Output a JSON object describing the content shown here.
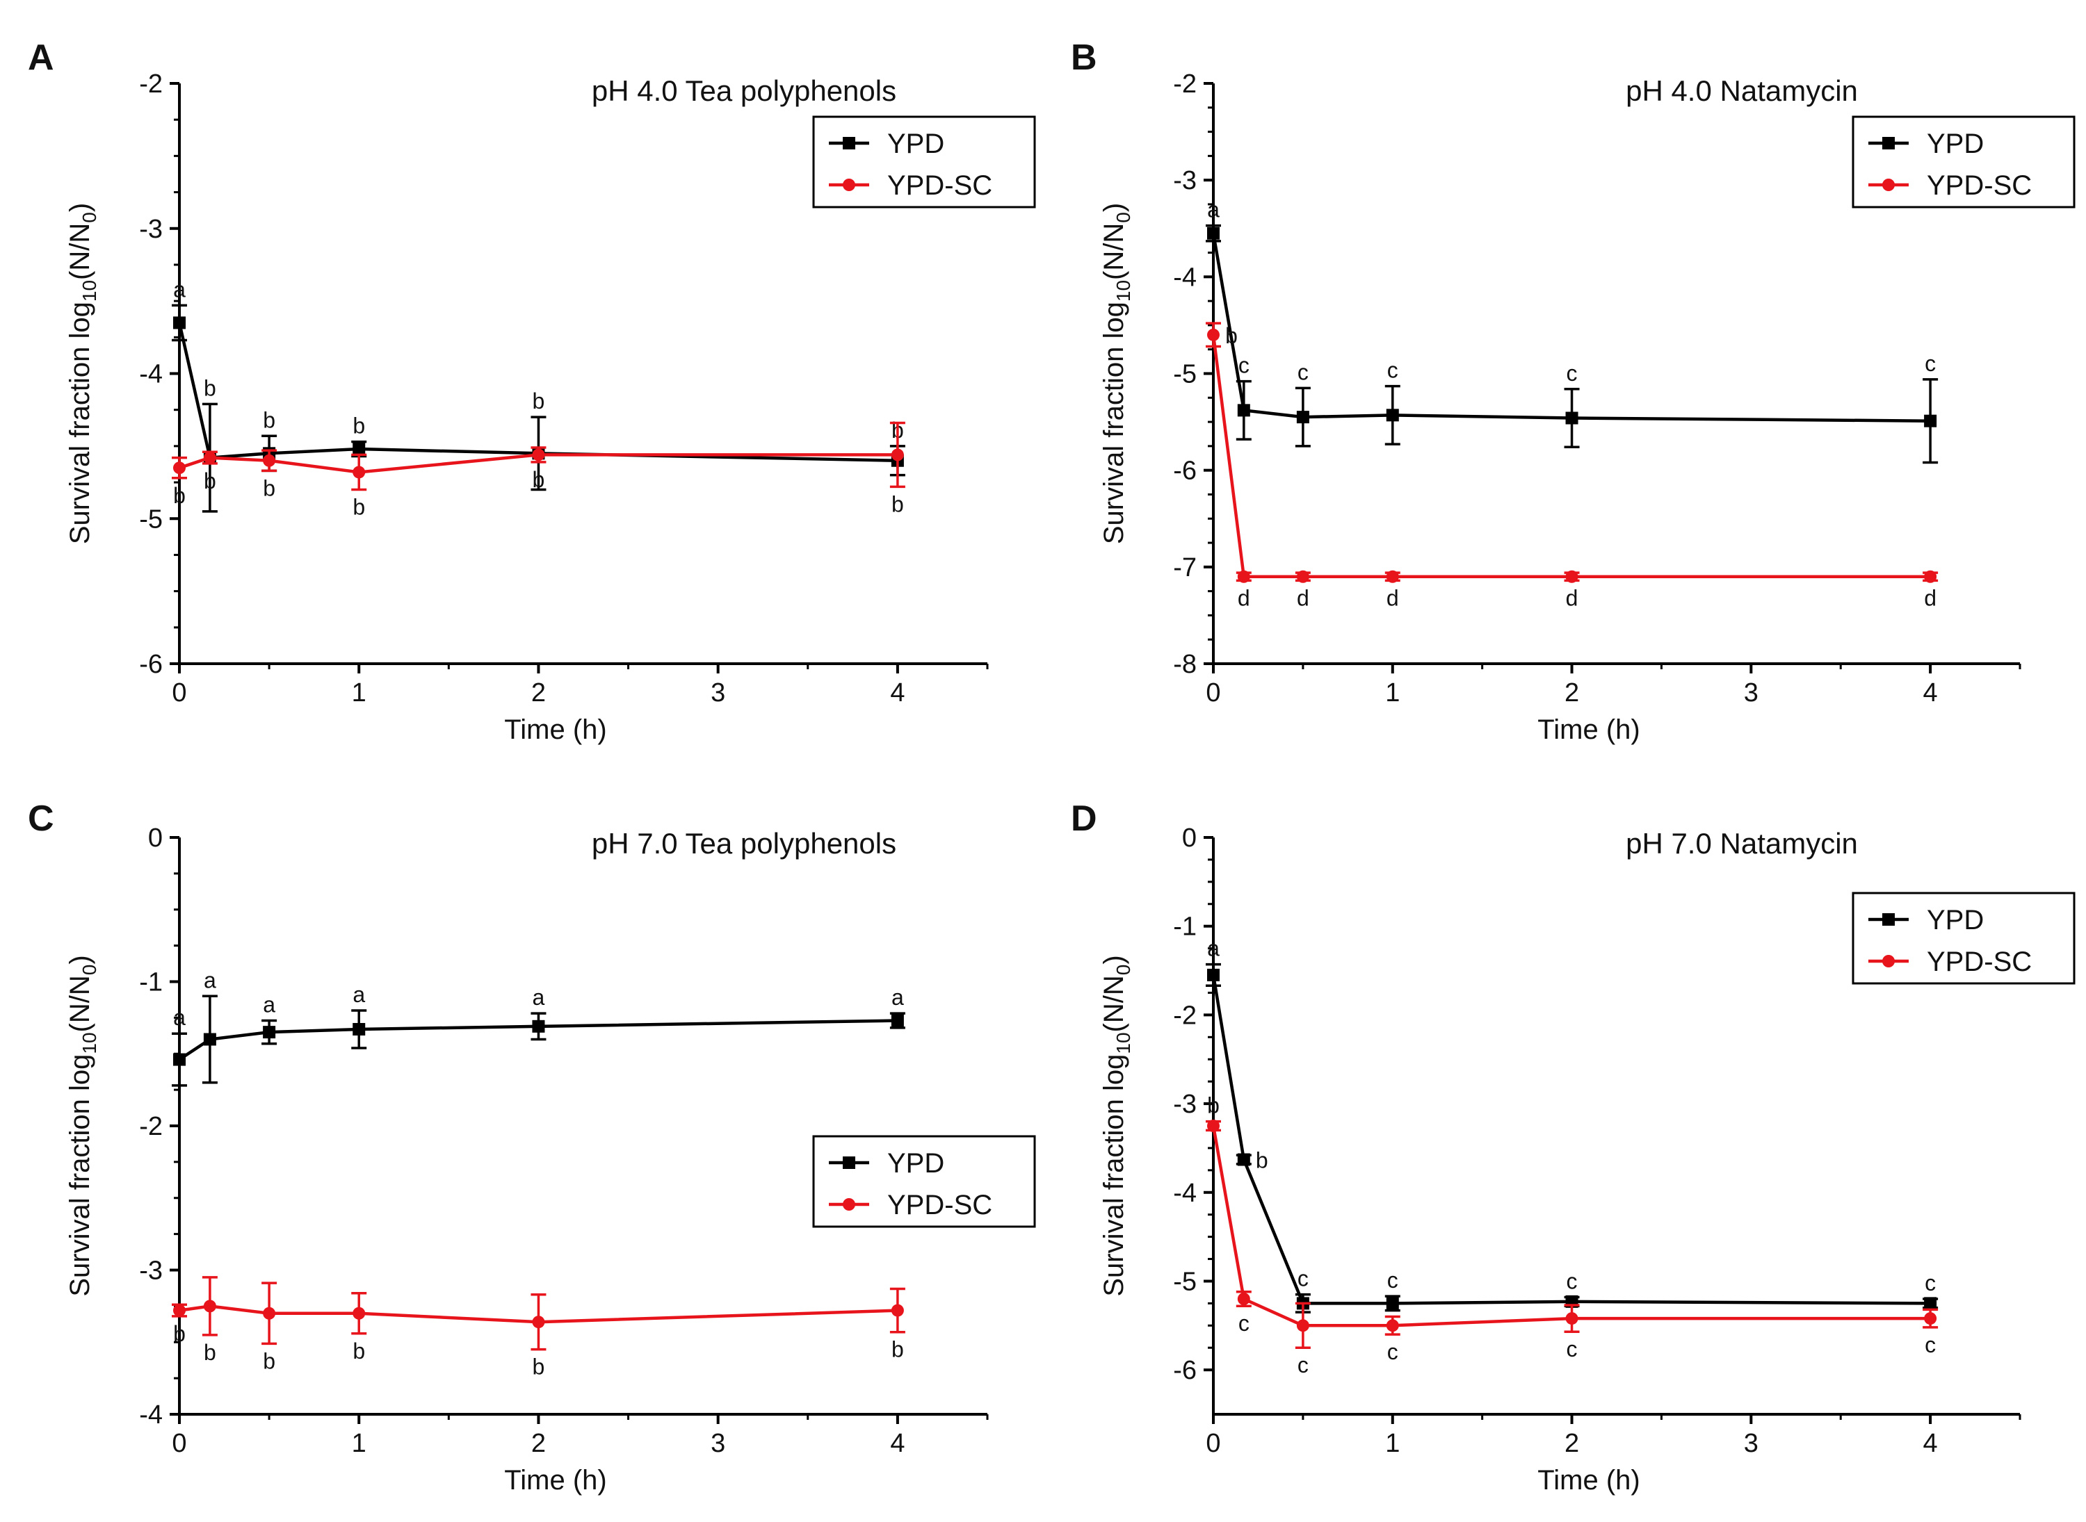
{
  "figure": {
    "description_note": ""
  },
  "chart_data": [
    {
      "panel": "A",
      "type": "line",
      "title": "pH 4.0   Tea polyphenols",
      "xlabel": "Time (h)",
      "ylabel_main": "Survival fraction log",
      "ylabel_sub": "10",
      "ylabel_tail": "(N/N",
      "ylabel_sub2": "0",
      "ylabel_end": ")",
      "xlim": [
        0,
        4.5
      ],
      "ylim": [
        -6,
        -2
      ],
      "xticks": [
        0,
        1,
        2,
        3,
        4
      ],
      "yticks": [
        -6,
        -5,
        -4,
        -3,
        -2
      ],
      "legend": "top-right",
      "x": [
        0,
        0.17,
        0.5,
        1,
        2,
        4
      ],
      "series": [
        {
          "name": "YPD",
          "color": "#000000",
          "marker": "square",
          "values": [
            -3.65,
            -4.58,
            -4.55,
            -4.52,
            -4.55,
            -4.6
          ],
          "errors": [
            0.12,
            0.37,
            0.12,
            0.05,
            0.25,
            0.1
          ],
          "letters": [
            "a",
            "b",
            "b",
            "b",
            "b",
            "b"
          ],
          "letter_pos": [
            "above",
            "above",
            "above",
            "above",
            "above",
            "above"
          ]
        },
        {
          "name": "YPD-SC",
          "color": "#e8141c",
          "marker": "circle",
          "values": [
            -4.65,
            -4.58,
            -4.6,
            -4.68,
            -4.56,
            -4.56
          ],
          "errors": [
            0.07,
            0.04,
            0.07,
            0.12,
            0.05,
            0.22
          ],
          "letters": [
            "b",
            "b",
            "b",
            "b",
            "b",
            "b"
          ],
          "letter_pos": [
            "below",
            "below",
            "below",
            "below",
            "below",
            "below"
          ]
        }
      ]
    },
    {
      "panel": "B",
      "type": "line",
      "title": "pH 4.0   Natamycin",
      "xlabel": "Time (h)",
      "ylabel_main": "Survival fraction log",
      "ylabel_sub": "10",
      "ylabel_tail": "(N/N",
      "ylabel_sub2": "0",
      "ylabel_end": ")",
      "xlim": [
        0,
        4.5
      ],
      "ylim": [
        -8,
        -2
      ],
      "xticks": [
        0,
        1,
        2,
        3,
        4
      ],
      "yticks": [
        -8,
        -7,
        -6,
        -5,
        -4,
        -3,
        -2
      ],
      "legend": "top-right",
      "x": [
        0,
        0.17,
        0.5,
        1,
        2,
        4
      ],
      "series": [
        {
          "name": "YPD",
          "color": "#000000",
          "marker": "square",
          "values": [
            -3.55,
            -5.38,
            -5.45,
            -5.43,
            -5.46,
            -5.49
          ],
          "errors": [
            0.08,
            0.3,
            0.3,
            0.3,
            0.3,
            0.43
          ],
          "letters": [
            "a",
            "c",
            "c",
            "c",
            "c",
            "c"
          ],
          "letter_pos": [
            "above",
            "above",
            "above",
            "above",
            "above",
            "above"
          ]
        },
        {
          "name": "YPD-SC",
          "color": "#e8141c",
          "marker": "circle",
          "values": [
            -4.6,
            -7.1,
            -7.1,
            -7.1,
            -7.1,
            -7.1
          ],
          "errors": [
            0.12,
            0.04,
            0.04,
            0.04,
            0.04,
            0.04
          ],
          "letters": [
            "b",
            "d",
            "d",
            "d",
            "d",
            "d"
          ],
          "letter_pos": [
            "right",
            "below",
            "below",
            "below",
            "below",
            "below"
          ]
        }
      ]
    },
    {
      "panel": "C",
      "type": "line",
      "title": "pH 7.0   Tea polyphenols",
      "xlabel": "Time (h)",
      "ylabel_main": "Survival fraction log",
      "ylabel_sub": "10",
      "ylabel_tail": "(N/N",
      "ylabel_sub2": "0",
      "ylabel_end": ")",
      "xlim": [
        0,
        4.5
      ],
      "ylim": [
        -4,
        0
      ],
      "xticks": [
        0,
        1,
        2,
        3,
        4
      ],
      "yticks": [
        -4,
        -3,
        -2,
        -1,
        0
      ],
      "legend": "center-right",
      "x": [
        0,
        0.17,
        0.5,
        1,
        2,
        4
      ],
      "series": [
        {
          "name": "YPD",
          "color": "#000000",
          "marker": "square",
          "values": [
            -1.54,
            -1.4,
            -1.35,
            -1.33,
            -1.31,
            -1.27
          ],
          "errors": [
            0.18,
            0.3,
            0.08,
            0.13,
            0.09,
            0.05
          ],
          "letters": [
            "a",
            "a",
            "a",
            "a",
            "a",
            "a"
          ],
          "letter_pos": [
            "above",
            "above",
            "above",
            "above",
            "above",
            "above"
          ]
        },
        {
          "name": "YPD-SC",
          "color": "#e8141c",
          "marker": "circle",
          "values": [
            -3.28,
            -3.25,
            -3.3,
            -3.3,
            -3.36,
            -3.28
          ],
          "errors": [
            0.04,
            0.2,
            0.21,
            0.14,
            0.19,
            0.15
          ],
          "letters": [
            "b",
            "b",
            "b",
            "b",
            "b",
            "b"
          ],
          "letter_pos": [
            "below",
            "below",
            "below",
            "below",
            "below",
            "below"
          ]
        }
      ]
    },
    {
      "panel": "D",
      "type": "line",
      "title": "pH 7.0   Natamycin",
      "xlabel": "Time (h)",
      "ylabel_main": "Survival fraction log",
      "ylabel_sub": "10",
      "ylabel_tail": "(N/N",
      "ylabel_sub2": "0",
      "ylabel_end": ")",
      "xlim": [
        0,
        4.5
      ],
      "ylim": [
        -6.5,
        0
      ],
      "xticks": [
        0,
        1,
        2,
        3,
        4
      ],
      "yticks": [
        -6,
        -5,
        -4,
        -3,
        -2,
        -1,
        0
      ],
      "legend": "upper-right",
      "x": [
        0,
        0.17,
        0.5,
        1,
        2,
        4
      ],
      "series": [
        {
          "name": "YPD",
          "color": "#000000",
          "marker": "square",
          "values": [
            -1.55,
            -3.63,
            -5.25,
            -5.25,
            -5.23,
            -5.25
          ],
          "errors": [
            0.12,
            0.05,
            0.1,
            0.08,
            0.05,
            0.05
          ],
          "letters": [
            "a",
            "b",
            "c",
            "c",
            "c",
            "c"
          ],
          "letter_pos": [
            "above",
            "right",
            "above",
            "above",
            "above",
            "above"
          ]
        },
        {
          "name": "YPD-SC",
          "color": "#e8141c",
          "marker": "circle",
          "values": [
            -3.25,
            -5.2,
            -5.5,
            -5.5,
            -5.42,
            -5.42
          ],
          "errors": [
            0.05,
            0.08,
            0.25,
            0.1,
            0.15,
            0.1
          ],
          "letters": [
            "b",
            "c",
            "c",
            "c",
            "c",
            "c"
          ],
          "letter_pos": [
            "above",
            "below",
            "below",
            "below",
            "below",
            "below"
          ]
        }
      ]
    }
  ]
}
